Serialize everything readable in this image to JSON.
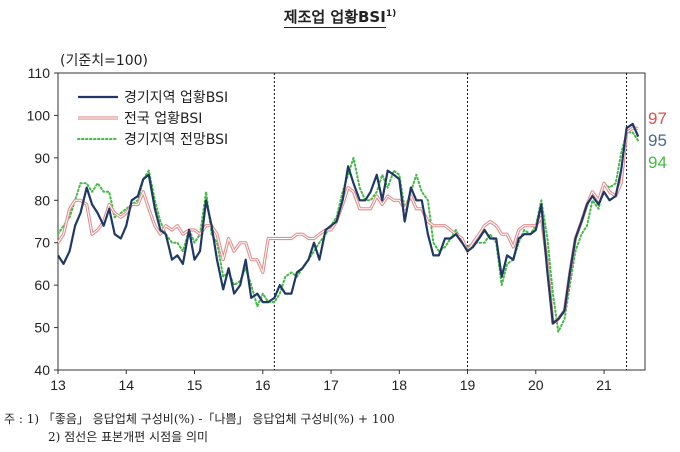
{
  "title": "제조업 업황BSI",
  "title_sup": "1)",
  "unit_label": "(기준치=100)",
  "end_labels": [
    {
      "text": "97",
      "color": "#e05050"
    },
    {
      "text": "95",
      "color": "#4a6a8a"
    },
    {
      "text": "94",
      "color": "#44bb44"
    }
  ],
  "notes": {
    "line1": "주 : 1) 「좋음」 응답업체 구성비(%) -「나쁨」 응답업체 구성비(%) + 100",
    "line2": "2) 점선은 표본개편 시점을 의미"
  },
  "chart_data": {
    "type": "line",
    "title": "제조업 업황BSI",
    "ylim": [
      40,
      110
    ],
    "yticks": [
      40,
      50,
      60,
      70,
      80,
      90,
      100,
      110
    ],
    "xlim": [
      13,
      21.6
    ],
    "xticks": [
      13,
      14,
      15,
      16,
      17,
      18,
      19,
      20,
      21
    ],
    "xtick_labels": [
      "13",
      "14",
      "15",
      "16",
      "17",
      "18",
      "19",
      "20",
      "21"
    ],
    "grid": false,
    "legend_position": "top-left",
    "vlines_dashed": [
      16.17,
      19.0,
      21.33
    ],
    "series": [
      {
        "name": "경기지역 업황BSI",
        "color": "#1f3864",
        "style": "solid",
        "x": [
          13.0,
          13.08,
          13.17,
          13.25,
          13.33,
          13.42,
          13.5,
          13.58,
          13.67,
          13.75,
          13.83,
          13.92,
          14.0,
          14.08,
          14.17,
          14.25,
          14.33,
          14.42,
          14.5,
          14.58,
          14.67,
          14.75,
          14.83,
          14.92,
          15.0,
          15.08,
          15.17,
          15.25,
          15.33,
          15.42,
          15.5,
          15.58,
          15.67,
          15.75,
          15.83,
          15.92,
          16.0,
          16.08,
          16.17,
          16.25,
          16.33,
          16.42,
          16.5,
          16.58,
          16.67,
          16.75,
          16.83,
          16.92,
          17.0,
          17.08,
          17.17,
          17.25,
          17.33,
          17.42,
          17.5,
          17.58,
          17.67,
          17.75,
          17.83,
          17.92,
          18.0,
          18.08,
          18.17,
          18.25,
          18.33,
          18.42,
          18.5,
          18.58,
          18.67,
          18.75,
          18.83,
          18.92,
          19.0,
          19.08,
          19.17,
          19.25,
          19.33,
          19.42,
          19.5,
          19.58,
          19.67,
          19.75,
          19.83,
          19.92,
          20.0,
          20.08,
          20.17,
          20.25,
          20.33,
          20.42,
          20.5,
          20.58,
          20.67,
          20.75,
          20.83,
          20.92,
          21.0,
          21.08,
          21.17,
          21.25,
          21.33,
          21.42,
          21.5
        ],
        "y": [
          67,
          65,
          68,
          74,
          77,
          83,
          79,
          77,
          74,
          78,
          72,
          71,
          74,
          80,
          81,
          85,
          86,
          78,
          73,
          72,
          66,
          67,
          65,
          73,
          66,
          68,
          80,
          74,
          66,
          59,
          64,
          58,
          60,
          66,
          57,
          58,
          56,
          56,
          57,
          60,
          58,
          58,
          63,
          64,
          66,
          70,
          66,
          73,
          74,
          75,
          80,
          88,
          84,
          80,
          80,
          82,
          86,
          80,
          87,
          86,
          85,
          75,
          83,
          80,
          80,
          72,
          67,
          67,
          71,
          71,
          72,
          70,
          68,
          69,
          71,
          73,
          71,
          71,
          62,
          67,
          66,
          71,
          72,
          72,
          73,
          79,
          63,
          51,
          52,
          54,
          63,
          71,
          75,
          79,
          81,
          79,
          82,
          80,
          81,
          87,
          97,
          98,
          95
        ]
      },
      {
        "name": "전국 업황BSI",
        "color": "#e08f8f",
        "style": "double",
        "x": [
          13.0,
          13.08,
          13.17,
          13.25,
          13.33,
          13.42,
          13.5,
          13.58,
          13.67,
          13.75,
          13.83,
          13.92,
          14.0,
          14.08,
          14.17,
          14.25,
          14.33,
          14.42,
          14.5,
          14.58,
          14.67,
          14.75,
          14.83,
          14.92,
          15.0,
          15.08,
          15.17,
          15.25,
          15.33,
          15.42,
          15.5,
          15.58,
          15.67,
          15.75,
          15.83,
          15.92,
          16.0,
          16.08,
          16.17,
          16.25,
          16.33,
          16.42,
          16.5,
          16.58,
          16.67,
          16.75,
          16.83,
          16.92,
          17.0,
          17.08,
          17.17,
          17.25,
          17.33,
          17.42,
          17.5,
          17.58,
          17.67,
          17.75,
          17.83,
          17.92,
          18.0,
          18.08,
          18.17,
          18.25,
          18.33,
          18.42,
          18.5,
          18.58,
          18.67,
          18.75,
          18.83,
          18.92,
          19.0,
          19.08,
          19.17,
          19.25,
          19.33,
          19.42,
          19.5,
          19.58,
          19.67,
          19.75,
          19.83,
          19.92,
          20.0,
          20.08,
          20.17,
          20.25,
          20.33,
          20.42,
          20.5,
          20.58,
          20.67,
          20.75,
          20.83,
          20.92,
          21.0,
          21.08,
          21.17,
          21.25,
          21.33,
          21.42,
          21.5
        ],
        "y": [
          70,
          72,
          78,
          80,
          80,
          79,
          72,
          73,
          75,
          79,
          77,
          76,
          77,
          79,
          79,
          82,
          78,
          74,
          72,
          74,
          73,
          74,
          72,
          73,
          73,
          72,
          74,
          74,
          72,
          66,
          71,
          68,
          70,
          70,
          66,
          66,
          63,
          71,
          71,
          71,
          71,
          71,
          72,
          72,
          71,
          71,
          72,
          73,
          73,
          75,
          79,
          83,
          82,
          78,
          78,
          78,
          81,
          79,
          81,
          80,
          80,
          78,
          81,
          78,
          78,
          75,
          74,
          74,
          74,
          73,
          72,
          71,
          68,
          70,
          72,
          74,
          75,
          74,
          72,
          72,
          69,
          73,
          74,
          74,
          74,
          76,
          65,
          51,
          52,
          54,
          63,
          71,
          75,
          79,
          82,
          80,
          84,
          82,
          81,
          84,
          96,
          97,
          97
        ]
      },
      {
        "name": "경기지역 전망BSI",
        "color": "#44bb44",
        "style": "dotted",
        "x": [
          13.0,
          13.08,
          13.17,
          13.25,
          13.33,
          13.42,
          13.5,
          13.58,
          13.67,
          13.75,
          13.83,
          13.92,
          14.0,
          14.08,
          14.17,
          14.25,
          14.33,
          14.42,
          14.5,
          14.58,
          14.67,
          14.75,
          14.83,
          14.92,
          15.0,
          15.08,
          15.17,
          15.25,
          15.33,
          15.42,
          15.5,
          15.58,
          15.67,
          15.75,
          15.83,
          15.92,
          16.0,
          16.08,
          16.17,
          16.25,
          16.33,
          16.42,
          16.5,
          16.58,
          16.67,
          16.75,
          16.83,
          16.92,
          17.0,
          17.08,
          17.17,
          17.25,
          17.33,
          17.42,
          17.5,
          17.58,
          17.67,
          17.75,
          17.83,
          17.92,
          18.0,
          18.08,
          18.17,
          18.25,
          18.33,
          18.42,
          18.5,
          18.58,
          18.67,
          18.75,
          18.83,
          18.92,
          19.0,
          19.08,
          19.17,
          19.25,
          19.33,
          19.42,
          19.5,
          19.58,
          19.67,
          19.75,
          19.83,
          19.92,
          20.0,
          20.08,
          20.17,
          20.25,
          20.33,
          20.42,
          20.5,
          20.58,
          20.67,
          20.75,
          20.83,
          20.92,
          21.0,
          21.08,
          21.17,
          21.25,
          21.33,
          21.42,
          21.5
        ],
        "y": [
          72,
          74,
          76,
          80,
          84,
          84,
          82,
          84,
          82,
          82,
          76,
          77,
          78,
          79,
          80,
          85,
          87,
          80,
          75,
          72,
          70,
          70,
          68,
          73,
          70,
          72,
          82,
          72,
          70,
          62,
          63,
          60,
          61,
          64,
          60,
          55,
          58,
          56,
          56,
          58,
          62,
          63,
          62,
          64,
          66,
          68,
          70,
          72,
          74,
          76,
          82,
          86,
          90,
          83,
          80,
          80,
          82,
          86,
          83,
          87,
          86,
          78,
          82,
          86,
          82,
          80,
          70,
          68,
          69,
          71,
          73,
          70,
          69,
          70,
          70,
          70,
          72,
          70,
          60,
          65,
          66,
          70,
          73,
          72,
          74,
          80,
          71,
          58,
          49,
          52,
          60,
          68,
          72,
          74,
          80,
          78,
          84,
          83,
          84,
          91,
          96,
          96,
          94
        ]
      }
    ]
  }
}
